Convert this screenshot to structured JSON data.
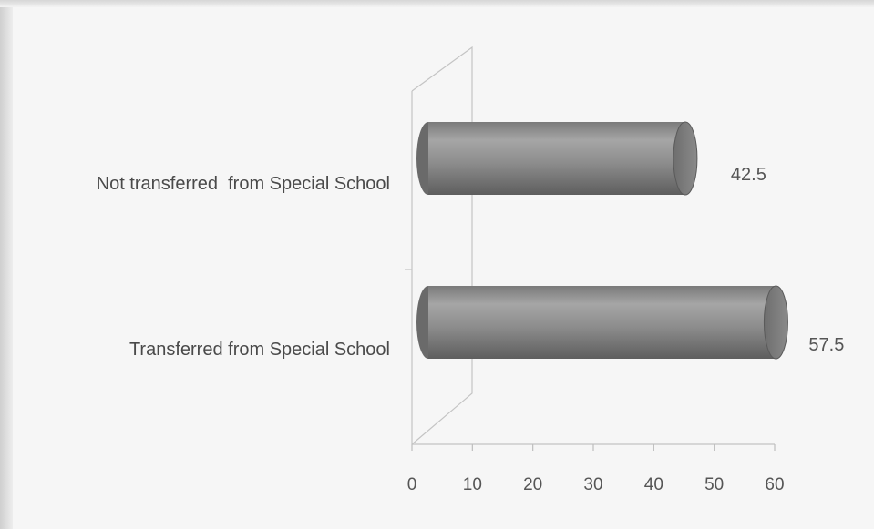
{
  "chart_data": {
    "type": "bar",
    "orientation": "horizontal",
    "style": "3d-cylinder",
    "categories": [
      "Not transferred  from Special School",
      "Transferred from Special School"
    ],
    "values": [
      42.5,
      57.5
    ],
    "data_labels": [
      "42.5",
      "57.5"
    ],
    "x_ticks": [
      "0",
      "10",
      "20",
      "30",
      "40",
      "50",
      "60"
    ],
    "xlim": [
      0,
      60
    ],
    "title": "",
    "xlabel": "",
    "ylabel": "",
    "grid": false,
    "legend": "none",
    "bar_color": "#8a8a8a",
    "axis_color": "#bdbdbd",
    "text_color": "#555555"
  }
}
